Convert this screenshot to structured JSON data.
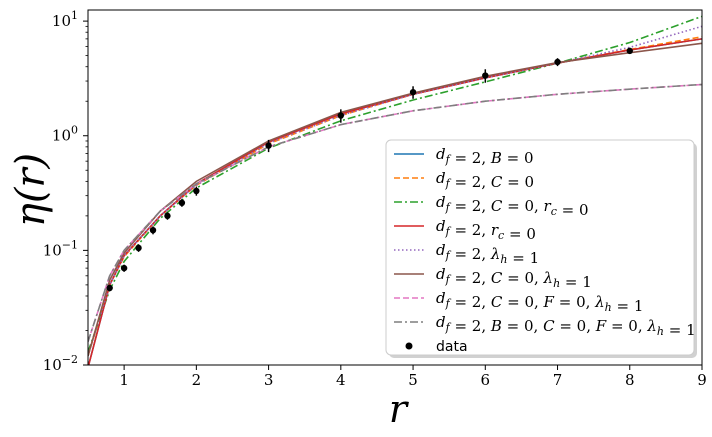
{
  "chart_data": {
    "type": "line",
    "xlabel": "r",
    "ylabel": "η(r)",
    "xlim": [
      0.5,
      9
    ],
    "ylim": [
      0.01,
      12.5
    ],
    "yscale": "log",
    "xticks": [
      1,
      2,
      3,
      4,
      5,
      6,
      7,
      8,
      9
    ],
    "yticks": [
      {
        "value": 0.01,
        "base": "10",
        "exp": "−2"
      },
      {
        "value": 0.1,
        "base": "10",
        "exp": "−1"
      },
      {
        "value": 1,
        "base": "10",
        "exp": "0"
      },
      {
        "value": 10,
        "base": "10",
        "exp": "1"
      }
    ],
    "grid": false,
    "legend_position": "lower-right",
    "series": [
      {
        "name": "d_f = 2, B = 0",
        "color": "#1f77b4",
        "dash": "solid",
        "x": [
          0.5,
          0.8,
          1,
          1.5,
          2,
          3,
          4,
          5,
          6,
          7,
          8,
          9
        ],
        "y": [
          0.0095,
          0.05,
          0.09,
          0.2,
          0.38,
          0.88,
          1.55,
          2.3,
          3.2,
          4.3,
          5.6,
          7.0
        ]
      },
      {
        "name": "d_f = 2, C = 0",
        "color": "#ff7f0e",
        "dash": "dashed",
        "x": [
          0.5,
          0.8,
          1,
          1.5,
          2,
          3,
          4,
          5,
          6,
          7,
          8,
          9
        ],
        "y": [
          0.012,
          0.05,
          0.088,
          0.2,
          0.37,
          0.85,
          1.5,
          2.3,
          3.2,
          4.3,
          5.65,
          7.3
        ]
      },
      {
        "name": "d_f = 2, C = 0, r_c = 0",
        "color": "#2ca02c",
        "dash": "dashdot",
        "x": [
          0.5,
          0.8,
          1,
          1.5,
          2,
          3,
          4,
          5,
          6,
          7,
          8,
          9
        ],
        "y": [
          0.013,
          0.045,
          0.08,
          0.19,
          0.35,
          0.78,
          1.35,
          2.05,
          2.95,
          4.3,
          6.5,
          11.0
        ]
      },
      {
        "name": "d_f = 2, r_c = 0",
        "color": "#d62728",
        "dash": "solid",
        "x": [
          0.5,
          0.8,
          1,
          1.5,
          2,
          3,
          4,
          5,
          6,
          7,
          8,
          9
        ],
        "y": [
          0.0095,
          0.05,
          0.09,
          0.2,
          0.38,
          0.88,
          1.55,
          2.3,
          3.2,
          4.3,
          5.6,
          7.0
        ]
      },
      {
        "name": "d_f = 2, λ_h = 1",
        "color": "#9467bd",
        "dash": "dotted",
        "x": [
          0.5,
          0.8,
          1,
          1.5,
          2,
          3,
          4,
          5,
          6,
          7,
          8,
          9
        ],
        "y": [
          0.012,
          0.05,
          0.09,
          0.2,
          0.37,
          0.86,
          1.5,
          2.3,
          3.2,
          4.3,
          5.9,
          9.0
        ]
      },
      {
        "name": "d_f = 2, C = 0, λ_h = 1",
        "color": "#8c564b",
        "dash": "solid",
        "x": [
          0.5,
          0.8,
          1,
          1.5,
          2,
          3,
          4,
          5,
          6,
          7,
          8,
          9
        ],
        "y": [
          0.012,
          0.055,
          0.095,
          0.22,
          0.4,
          0.9,
          1.6,
          2.35,
          3.3,
          4.35,
          5.3,
          6.4
        ]
      },
      {
        "name": "d_f = 2, C = 0, F = 0, λ_h = 1",
        "color": "#e377c2",
        "dash": "dashed",
        "x": [
          0.5,
          0.8,
          1,
          1.5,
          2,
          3,
          4,
          5,
          6,
          7,
          8,
          9
        ],
        "y": [
          0.016,
          0.06,
          0.1,
          0.22,
          0.38,
          0.8,
          1.25,
          1.65,
          2.0,
          2.3,
          2.55,
          2.8
        ]
      },
      {
        "name": "d_f = 2, B = 0, C = 0, F = 0, λ_h = 1",
        "color": "#7f7f7f",
        "dash": "dashdot",
        "x": [
          0.5,
          0.8,
          1,
          1.5,
          2,
          3,
          4,
          5,
          6,
          7,
          8,
          9
        ],
        "y": [
          0.016,
          0.06,
          0.1,
          0.22,
          0.38,
          0.8,
          1.25,
          1.65,
          2.0,
          2.3,
          2.55,
          2.8
        ]
      }
    ],
    "data_points": {
      "name": "data",
      "color": "#000000",
      "x": [
        0.8,
        1.0,
        1.2,
        1.4,
        1.6,
        1.8,
        2.0,
        3.0,
        4.0,
        5.0,
        6.0,
        7.0,
        8.0
      ],
      "y": [
        0.047,
        0.07,
        0.105,
        0.15,
        0.2,
        0.26,
        0.33,
        0.82,
        1.5,
        2.4,
        3.35,
        4.4,
        5.5
      ],
      "err": [
        0.003,
        0.005,
        0.008,
        0.012,
        0.015,
        0.02,
        0.03,
        0.1,
        0.2,
        0.3,
        0.45,
        0.35,
        0.3
      ]
    }
  }
}
